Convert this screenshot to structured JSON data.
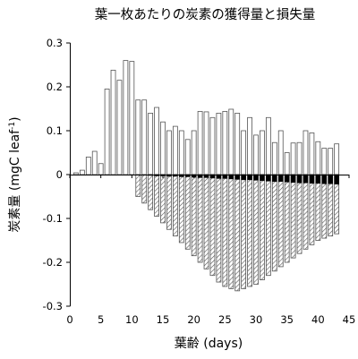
{
  "chart_data": {
    "type": "bar",
    "title": "葉一枚あたりの炭素の獲得量と損失量",
    "xlabel": "葉齢 (days)",
    "ylabel": "炭素量 (mgC leaf",
    "ylabel_superscript": "-1",
    "ylabel_close": ")",
    "xlim": [
      0,
      45
    ],
    "ylim": [
      -0.3,
      0.3
    ],
    "x_ticks": [
      0,
      5,
      10,
      15,
      20,
      25,
      30,
      35,
      40,
      45
    ],
    "y_ticks": [
      0.3,
      0.2,
      0.1,
      0,
      -0.1,
      -0.2,
      -0.3
    ],
    "y_tick_labels": [
      "0.3",
      "0.2",
      "0.1",
      "0",
      "-0.1",
      "-0.2",
      "-0.3"
    ],
    "x_tick_labels": [
      "0",
      "5",
      "10",
      "15",
      "20",
      "25",
      "30",
      "35",
      "40",
      "45"
    ],
    "grid": false,
    "legend": "none",
    "x": [
      1,
      2,
      3,
      4,
      5,
      6,
      7,
      8,
      9,
      10,
      11,
      12,
      13,
      14,
      15,
      16,
      17,
      18,
      19,
      20,
      21,
      22,
      23,
      24,
      25,
      26,
      27,
      28,
      29,
      30,
      31,
      32,
      33,
      34,
      35,
      36,
      37,
      38,
      39,
      40,
      41,
      42,
      43
    ],
    "series": [
      {
        "style": "open",
        "values": [
          0.004,
          0.01,
          0.04,
          0.053,
          0.025,
          0.195,
          0.238,
          0.215,
          0.26,
          0.258,
          0.17,
          0.17,
          0.14,
          0.153,
          0.12,
          0.1,
          0.11,
          0.1,
          0.08,
          0.1,
          0.144,
          0.143,
          0.13,
          0.14,
          0.144,
          0.149,
          0.14,
          0.1,
          0.13,
          0.09,
          0.1,
          0.13,
          0.073,
          0.1,
          0.05,
          0.072,
          0.073,
          0.1,
          0.095,
          0.075,
          0.06,
          0.06,
          0.07
        ]
      },
      {
        "style": "solid-black",
        "values": [
          0,
          0,
          0,
          0,
          0,
          0,
          0,
          0,
          0,
          0,
          0,
          0,
          -0.002,
          -0.003,
          -0.003,
          -0.004,
          -0.004,
          -0.005,
          -0.005,
          -0.006,
          -0.007,
          -0.007,
          -0.008,
          -0.009,
          -0.009,
          -0.01,
          -0.011,
          -0.012,
          -0.012,
          -0.013,
          -0.014,
          -0.015,
          -0.016,
          -0.016,
          -0.017,
          -0.018,
          -0.019,
          -0.019,
          -0.02,
          -0.02,
          -0.021,
          -0.021,
          -0.022
        ]
      },
      {
        "style": "hatched",
        "values": [
          0,
          0,
          0,
          0,
          0,
          0,
          0,
          0,
          0,
          0,
          -0.05,
          -0.065,
          -0.08,
          -0.095,
          -0.11,
          -0.125,
          -0.14,
          -0.155,
          -0.17,
          -0.185,
          -0.2,
          -0.215,
          -0.23,
          -0.245,
          -0.255,
          -0.26,
          -0.265,
          -0.26,
          -0.255,
          -0.25,
          -0.24,
          -0.23,
          -0.22,
          -0.21,
          -0.2,
          -0.19,
          -0.18,
          -0.17,
          -0.16,
          -0.15,
          -0.145,
          -0.14,
          -0.135
        ]
      }
    ]
  }
}
